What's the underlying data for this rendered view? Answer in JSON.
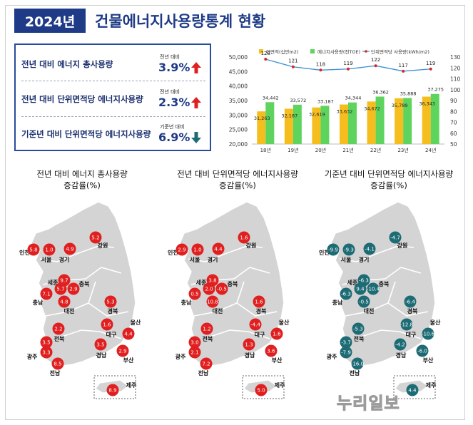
{
  "header": {
    "year_badge": "2024년",
    "title": "건물에너지사용량통계 현황"
  },
  "summary": [
    {
      "label": "전년 대비 에너지 총사용량",
      "note": "전년 대비",
      "value": "3.9%",
      "direction": "up",
      "color": "#e02020"
    },
    {
      "label": "전년 대비 단위면적당 에너지사용량",
      "note": "전년 대비",
      "value": "2.3%",
      "direction": "up",
      "color": "#e02020"
    },
    {
      "label": "기준년 대비 단위면적당 에너지사용량",
      "note": "기준년 대비",
      "value": "6.9%",
      "direction": "down",
      "color": "#1d6b74"
    }
  ],
  "chart_data": {
    "type": "bar",
    "categories": [
      "18년",
      "19년",
      "20년",
      "21년",
      "22년",
      "23년",
      "24년"
    ],
    "series": [
      {
        "name": "연면적(십만m2)",
        "type": "bar",
        "color": "#f5be1e",
        "values": [
          31263,
          32187,
          32619,
          33632,
          34672,
          35789,
          36343
        ]
      },
      {
        "name": "에너지사용량(천TOE)",
        "type": "bar",
        "color": "#5ed45e",
        "values": [
          34442,
          33572,
          33187,
          34344,
          36362,
          35888,
          37275
        ]
      },
      {
        "name": "단위면적당 사용량(kWh/m2)",
        "type": "line",
        "axis": "right",
        "color": "#3b8fd0",
        "values": [
          128,
          121,
          118,
          119,
          122,
          117,
          119
        ]
      }
    ],
    "y_left_ticks": [
      "50,000",
      "45,000",
      "40,000",
      "35,000",
      "30,000",
      "25,000",
      "20,000"
    ],
    "y_right_ticks": [
      "130",
      "120",
      "110",
      "100",
      "90",
      "80",
      "70",
      "60",
      "50"
    ],
    "ylim_left": [
      20000,
      50000
    ],
    "ylim_right": [
      50,
      130
    ]
  },
  "maps": [
    {
      "title": [
        "전년 대비 에너지 총사용량",
        "증감률(%)"
      ],
      "color": "#e02020",
      "values": {
        "seoul": "1.0",
        "incheon": "5.8",
        "gyeonggi": "4.9",
        "gangwon": "5.2",
        "sejong": "9.7",
        "chungnam": "7.1",
        "chungbuk": "2.9",
        "daejeon": "4.8",
        "gyeongbuk": "5.3",
        "daegu": "1.6",
        "ulsan": "4.4",
        "jeonbuk": "2.2",
        "gyeongnam": "3.5",
        "busan": "2.9",
        "gwangju": "3.3",
        "jeonnam": "8.5",
        "jeju": "8.9",
        "extra1": "5.7",
        "extra2": "3.5"
      }
    },
    {
      "title": [
        "전년 대비 단위면적당 에너지사용량",
        "증감률(%)"
      ],
      "color": "#e02020",
      "values": {
        "seoul": "1.0",
        "incheon": "2.9",
        "gyeonggi": "4.4",
        "gangwon": "1.6",
        "sejong": "3.8",
        "chungnam": "0.5",
        "chungbuk": "-0.5",
        "daejeon": "10.8",
        "gyeongbuk": "1.6",
        "daegu": "-4.4",
        "ulsan": "1.6",
        "jeonbuk": "1.2",
        "gyeongnam": "1.3",
        "busan": "3.6",
        "gwangju": "2.1",
        "jeonnam": "7.2",
        "jeju": "5.0",
        "extra1": "2.0",
        "extra2": "3.0"
      }
    },
    {
      "title": [
        "기준년 대비 단위면적당 에너지사용량",
        "증감률(%)"
      ],
      "color": "#1d6b74",
      "values": {
        "seoul": "-9.3",
        "incheon": "-9.9",
        "gyeonggi": "-4.1",
        "gangwon": "-4.7",
        "sejong": "-6.3",
        "chungnam": "-6.3",
        "chungbuk": "-10.4",
        "daejeon": "-0.5",
        "gyeongbuk": "-6.4",
        "daegu": "-12.8",
        "ulsan": "-10.6",
        "jeonbuk": "-5.3",
        "gyeongnam": "-4.2",
        "busan": "-6.0",
        "gwangju": "-7.9",
        "jeonnam": "-16.0",
        "jeju": "4.4",
        "extra1": "9.4",
        "extra2": "-3.7"
      }
    }
  ],
  "region_names": {
    "seoul": "서울",
    "incheon": "인천",
    "gyeonggi": "경기",
    "gangwon": "강원",
    "sejong": "세종",
    "chungnam": "충남",
    "chungbuk": "충북",
    "daejeon": "대전",
    "gyeongbuk": "경북",
    "daegu": "대구",
    "ulsan": "울산",
    "jeonbuk": "전북",
    "gyeongnam": "경남",
    "busan": "부산",
    "gwangju": "광주",
    "jeonnam": "전남",
    "jeju": "제주"
  },
  "watermark": "누리일보"
}
